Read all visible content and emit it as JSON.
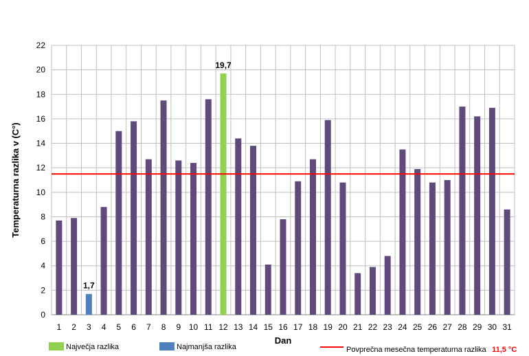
{
  "chart_data": {
    "type": "bar",
    "xlabel": "Dan",
    "ylabel": "Temperaturna razlika v (C°)",
    "ylim": [
      0,
      22
    ],
    "ytick_step": 2,
    "grid": true,
    "categories": [
      "1",
      "2",
      "3",
      "4",
      "5",
      "6",
      "7",
      "8",
      "9",
      "10",
      "11",
      "12",
      "13",
      "14",
      "15",
      "16",
      "17",
      "18",
      "19",
      "20",
      "21",
      "22",
      "23",
      "24",
      "25",
      "26",
      "27",
      "28",
      "29",
      "30",
      "31"
    ],
    "values": [
      7.7,
      7.9,
      1.7,
      8.8,
      15.0,
      15.8,
      12.7,
      17.5,
      12.6,
      12.4,
      17.6,
      19.7,
      14.4,
      13.8,
      4.1,
      7.8,
      10.9,
      12.7,
      15.9,
      10.8,
      3.4,
      3.9,
      4.8,
      13.5,
      11.9,
      10.8,
      11.0,
      17.0,
      16.2,
      16.9,
      8.6
    ],
    "max_index": 11,
    "min_index": 2,
    "max_label": "19,7",
    "min_label": "1,7",
    "average": 11.5,
    "colors": {
      "default_bar": "#604a7b",
      "max_bar": "#92d050",
      "min_bar": "#4f81bd",
      "average_line": "#ff0000"
    },
    "legend": {
      "max": "Največja razlika",
      "min": "Najmanjša razlika",
      "average": "Povprečna mesečna temperaturna razlika",
      "average_value": "11,5 °C"
    }
  }
}
